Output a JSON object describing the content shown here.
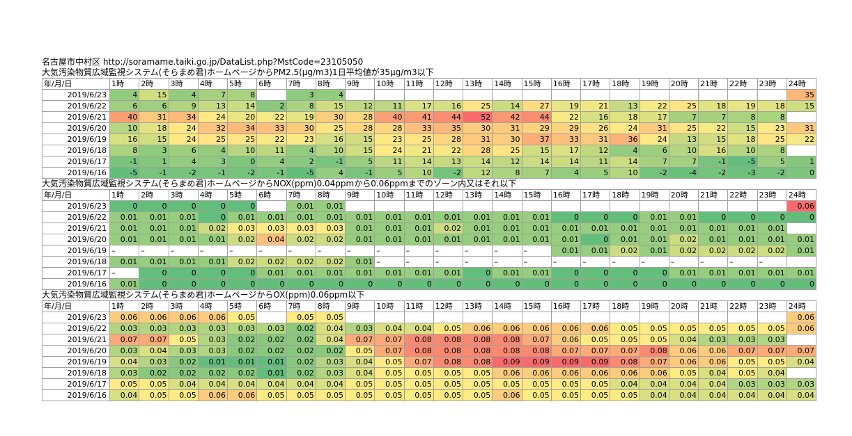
{
  "header": {
    "source": "名古屋市中村区 http://soramame.taiki.go.jp/DataList.php?MstCode=23105050"
  },
  "sections": [
    {
      "title": "大気汚染物質広域監視システム(そらまめ君)ホームページからPM2.5(μg/m3)1日平均値が35μg/m3以下",
      "metric": "pm25",
      "header_label": "年/月/日",
      "hours": [
        "1時",
        "2時",
        "3時",
        "4時",
        "5時",
        "6時",
        "7時",
        "8時",
        "9時",
        "10時",
        "11時",
        "12時",
        "13時",
        "14時",
        "15時",
        "16時",
        "17時",
        "18時",
        "19時",
        "20時",
        "21時",
        "22時",
        "23時",
        "24時"
      ],
      "rows": [
        {
          "date": "2019/6/23",
          "values": [
            "4",
            "15",
            "4",
            "7",
            "8",
            "",
            "3",
            "4",
            "",
            "",
            "",
            "",
            "",
            "",
            "",
            "",
            "",
            "",
            "",
            "",
            "",
            "",
            "",
            "35"
          ]
        },
        {
          "date": "2019/6/22",
          "values": [
            "6",
            "6",
            "9",
            "13",
            "14",
            "2",
            "8",
            "15",
            "12",
            "11",
            "17",
            "16",
            "25",
            "14",
            "27",
            "19",
            "21",
            "13",
            "22",
            "25",
            "18",
            "19",
            "18",
            "15"
          ]
        },
        {
          "date": "2019/6/21",
          "values": [
            "40",
            "31",
            "34",
            "24",
            "20",
            "22",
            "19",
            "30",
            "28",
            "40",
            "41",
            "44",
            "52",
            "42",
            "44",
            "22",
            "16",
            "18",
            "17",
            "7",
            "7",
            "8",
            "8",
            ""
          ]
        },
        {
          "date": "2019/6/20",
          "values": [
            "10",
            "18",
            "24",
            "32",
            "34",
            "33",
            "30",
            "25",
            "28",
            "28",
            "33",
            "35",
            "30",
            "31",
            "29",
            "29",
            "26",
            "24",
            "31",
            "25",
            "22",
            "15",
            "23",
            "31"
          ]
        },
        {
          "date": "2019/6/19",
          "values": [
            "16",
            "15",
            "24",
            "25",
            "25",
            "22",
            "23",
            "16",
            "15",
            "23",
            "25",
            "28",
            "31",
            "30",
            "37",
            "33",
            "31",
            "36",
            "24",
            "13",
            "15",
            "18",
            "25",
            "22"
          ]
        },
        {
          "date": "2019/6/18",
          "values": [
            "8",
            "3",
            "6",
            "4",
            "10",
            "11",
            "4",
            "10",
            "15",
            "24",
            "21",
            "22",
            "28",
            "25",
            "15",
            "17",
            "12",
            "4",
            "6",
            "10",
            "16",
            "10",
            "8",
            ""
          ]
        },
        {
          "date": "2019/6/17",
          "values": [
            "-1",
            "1",
            "4",
            "3",
            "0",
            "4",
            "2",
            "-1",
            "5",
            "11",
            "14",
            "13",
            "14",
            "12",
            "14",
            "14",
            "11",
            "14",
            "7",
            "7",
            "-1",
            "-5",
            "5",
            "1"
          ]
        },
        {
          "date": "2019/6/16",
          "values": [
            "-5",
            "-1",
            "-2",
            "-1",
            "-2",
            "-1",
            "-5",
            "4",
            "-1",
            "5",
            "10",
            "-2",
            "12",
            "8",
            "7",
            "4",
            "5",
            "10",
            "-2",
            "-4",
            "-2",
            "-3",
            "-2",
            "0"
          ]
        }
      ]
    },
    {
      "title": "大気汚染物質広域監視システム(そらまめ君)ホームページからNOX(ppm)0.04ppmから0.06ppmまでのゾーン内又はそれ以下",
      "metric": "nox",
      "header_label": "年/月/日",
      "hours": [
        "1時",
        "2時",
        "3時",
        "4時",
        "5時",
        "6時",
        "7時",
        "8時",
        "9時",
        "10時",
        "11時",
        "12時",
        "13時",
        "14時",
        "15時",
        "16時",
        "17時",
        "18時",
        "19時",
        "20時",
        "21時",
        "22時",
        "23時",
        "24時"
      ],
      "rows": [
        {
          "date": "2019/6/23",
          "values": [
            "0",
            "0",
            "0",
            "0",
            "0",
            "",
            "0.01",
            "0.01",
            "",
            "",
            "",
            "",
            "",
            "",
            "",
            "",
            "",
            "",
            "",
            "",
            "",
            "",
            "",
            "0.06"
          ]
        },
        {
          "date": "2019/6/22",
          "values": [
            "0.01",
            "0.01",
            "0.01",
            "0",
            "0.01",
            "0.01",
            "0.01",
            "0.01",
            "0.01",
            "0.01",
            "0.01",
            "0.01",
            "0.01",
            "0.01",
            "0.01",
            "0",
            "0",
            "0",
            "0.01",
            "0.01",
            "0",
            "0",
            "0",
            "0"
          ]
        },
        {
          "date": "2019/6/21",
          "values": [
            "0.01",
            "0.01",
            "0.01",
            "0.02",
            "0.03",
            "0.03",
            "0.03",
            "0.03",
            "0.01",
            "0.01",
            "0.01",
            "0.02",
            "0.01",
            "0.01",
            "0.01",
            "0.01",
            "0.01",
            "0.01",
            "0.01",
            "0.01",
            "0.01",
            "0.01",
            "0.01",
            ""
          ]
        },
        {
          "date": "2019/6/20",
          "values": [
            "0.01",
            "0.01",
            "0.01",
            "0.01",
            "0.02",
            "0.04",
            "0.02",
            "0.02",
            "0.01",
            "0.01",
            "0.01",
            "0.01",
            "0.01",
            "0.01",
            "0.01",
            "0.01",
            "0",
            "0.01",
            "0.01",
            "0.02",
            "0.01",
            "0.01",
            "0.01",
            "0.01"
          ]
        },
        {
          "date": "2019/6/19",
          "values": [
            "–",
            "–",
            "–",
            "–",
            "–",
            "–",
            "–",
            "–",
            "–",
            "–",
            "–",
            "–",
            "–",
            "–",
            "–",
            "0.01",
            "0.01",
            "0.02",
            "0.01",
            "0.02",
            "0.02",
            "0.02",
            "0.02",
            "0.01"
          ]
        },
        {
          "date": "2019/6/18",
          "values": [
            "0.01",
            "0.01",
            "0.01",
            "0.01",
            "0.02",
            "0.02",
            "0.02",
            "0.02",
            "0.01",
            "–",
            "–",
            "–",
            "–",
            "–",
            "–",
            "–",
            "–",
            "–",
            "–",
            "–",
            "–",
            "–",
            "–",
            ""
          ]
        },
        {
          "date": "2019/6/17",
          "values": [
            "–",
            "0",
            "0",
            "0",
            "0",
            "0.01",
            "0.01",
            "0.01",
            "0.01",
            "0.01",
            "0.01",
            "0.01",
            "0",
            "0.01",
            "0.01",
            "0",
            "0",
            "0",
            "0",
            "0.01",
            "0.01",
            "0.01",
            "0.01",
            "0.01"
          ]
        },
        {
          "date": "2019/6/16",
          "values": [
            "0.01",
            "0",
            "0",
            "0",
            "0",
            "0",
            "0",
            "0",
            "0",
            "0",
            "0",
            "0",
            "0",
            "0",
            "0",
            "0",
            "0",
            "0",
            "0",
            "0",
            "0",
            "0",
            "0",
            "0"
          ]
        }
      ]
    },
    {
      "title": "大気汚染物質広域監視システム(そらまめ君)ホームページからOX(ppm)0.06ppm以下",
      "metric": "ox",
      "header_label": "年/月/日",
      "hours": [
        "1時",
        "2時",
        "3時",
        "4時",
        "5時",
        "6時",
        "7時",
        "8時",
        "9時",
        "10時",
        "11時",
        "12時",
        "13時",
        "14時",
        "15時",
        "16時",
        "17時",
        "18時",
        "19時",
        "20時",
        "21時",
        "22時",
        "23時",
        "24時"
      ],
      "rows": [
        {
          "date": "2019/6/23",
          "values": [
            "0.06",
            "0.06",
            "0.06",
            "0.06",
            "0.05",
            "",
            "0.05",
            "0.05",
            "",
            "",
            "",
            "",
            "",
            "",
            "",
            "",
            "",
            "",
            "",
            "",
            "",
            "",
            "",
            "0.06"
          ]
        },
        {
          "date": "2019/6/22",
          "values": [
            "0.03",
            "0.03",
            "0.03",
            "0.03",
            "0.03",
            "0.03",
            "0.02",
            "0.04",
            "0.03",
            "0.04",
            "0.04",
            "0.05",
            "0.06",
            "0.06",
            "0.06",
            "0.06",
            "0.06",
            "0.05",
            "0.05",
            "0.05",
            "0.05",
            "0.05",
            "0.05",
            "0.06"
          ]
        },
        {
          "date": "2019/6/21",
          "values": [
            "0.07",
            "0.07",
            "0.05",
            "0.03",
            "0.02",
            "0.02",
            "0.02",
            "0.04",
            "0.07",
            "0.07",
            "0.08",
            "0.08",
            "0.08",
            "0.08",
            "0.07",
            "0.06",
            "0.05",
            "0.05",
            "0.05",
            "0.04",
            "0.03",
            "0.03",
            "0.03",
            ""
          ]
        },
        {
          "date": "2019/6/20",
          "values": [
            "0.03",
            "0.04",
            "0.03",
            "0.03",
            "0.02",
            "0.02",
            "0.02",
            "0.02",
            "0.05",
            "0.07",
            "0.08",
            "0.08",
            "0.08",
            "0.08",
            "0.08",
            "0.07",
            "0.07",
            "0.07",
            "0.08",
            "0.06",
            "0.06",
            "0.07",
            "0.07",
            "0.07"
          ]
        },
        {
          "date": "2019/6/19",
          "values": [
            "0.04",
            "0.03",
            "0.02",
            "0.01",
            "0.01",
            "0.01",
            "0.02",
            "0.03",
            "0.04",
            "0.05",
            "0.07",
            "0.08",
            "0.08",
            "0.09",
            "0.09",
            "0.09",
            "0.09",
            "0.08",
            "0.07",
            "0.06",
            "0.06",
            "0.05",
            "0.05",
            "0.04"
          ]
        },
        {
          "date": "2019/6/18",
          "values": [
            "0.03",
            "0.02",
            "0.02",
            "0.02",
            "0.02",
            "0.01",
            "0.02",
            "0.03",
            "0.04",
            "0.05",
            "0.05",
            "0.05",
            "0.05",
            "0.06",
            "0.06",
            "0.06",
            "0.06",
            "0.06",
            "0.06",
            "0.05",
            "0.04",
            "0.05",
            "0.04",
            ""
          ]
        },
        {
          "date": "2019/6/17",
          "values": [
            "0.05",
            "0.05",
            "0.04",
            "0.04",
            "0.04",
            "0.04",
            "0.04",
            "0.04",
            "0.05",
            "0.05",
            "0.05",
            "0.05",
            "0.05",
            "0.05",
            "0.05",
            "0.05",
            "0.05",
            "0.04",
            "0.04",
            "0.04",
            "0.04",
            "0.03",
            "0.03",
            "0.03"
          ]
        },
        {
          "date": "2019/6/16",
          "values": [
            "0.04",
            "0.05",
            "0.05",
            "0.06",
            "0.06",
            "0.05",
            "0.05",
            "0.05",
            "0.05",
            "0.05",
            "0.05",
            "0.05",
            "0.05",
            "0.06",
            "0.05",
            "0.05",
            "0.05",
            "0.05",
            "0.04",
            "0.04",
            "0.04",
            "0.04",
            "0.04",
            "0.04"
          ]
        }
      ]
    }
  ],
  "colors": {
    "low": "#63be7b",
    "mid": "#ffeb84",
    "high": "#f8696b"
  }
}
